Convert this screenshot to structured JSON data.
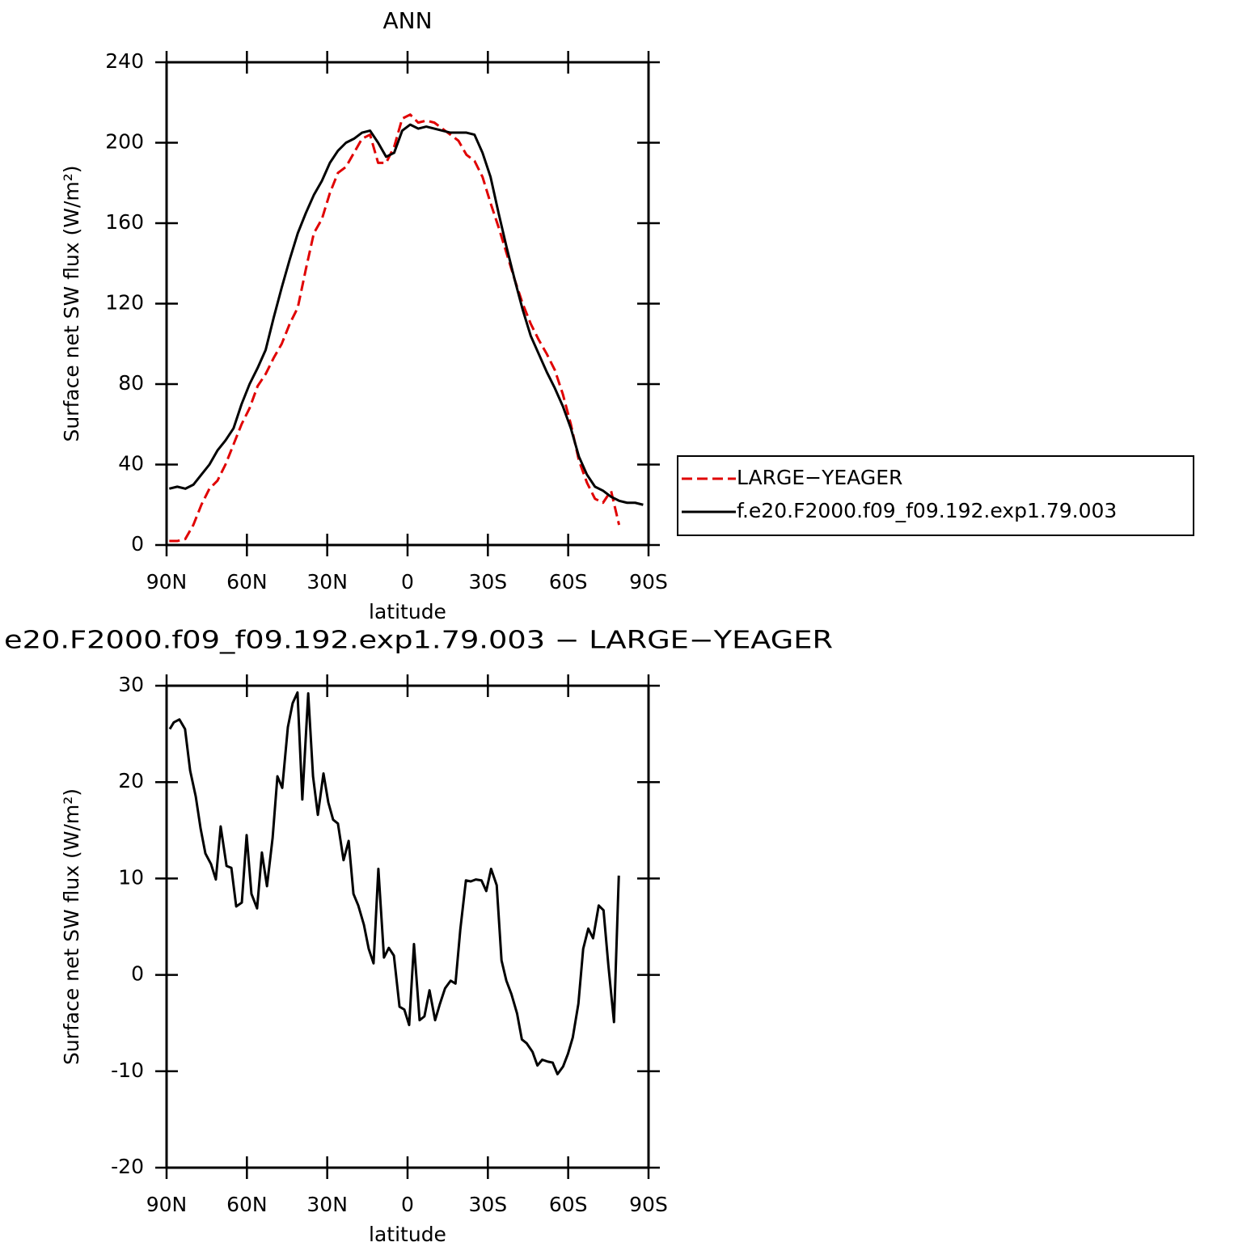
{
  "chart_data": [
    {
      "type": "line",
      "title": "ANN",
      "xlabel": "latitude",
      "ylabel": "Surface net SW flux (W/m²)",
      "x": [
        89,
        86,
        83,
        80,
        77,
        74,
        71,
        68,
        65,
        62,
        59,
        56,
        53,
        50,
        47,
        44,
        41,
        38,
        35,
        32,
        29,
        26,
        23,
        20,
        17,
        14,
        11,
        8,
        5,
        2,
        -1,
        -4,
        -7,
        -10,
        -13,
        -16,
        -19,
        -22,
        -25,
        -28,
        -31,
        -34,
        -37,
        -40,
        -43,
        -46,
        -49,
        -52,
        -55,
        -58,
        -61,
        -64,
        -67,
        -70,
        -73,
        -76,
        -79,
        -82,
        -85,
        -88
      ],
      "series": [
        {
          "name": "LARGE−YEAGER",
          "color": "#e00000",
          "linestyle": "dashed",
          "values": [
            2,
            2,
            3,
            10,
            20,
            28,
            32,
            40,
            50,
            60,
            68,
            79,
            85,
            93,
            100,
            110,
            118,
            137,
            155,
            162,
            175,
            185,
            188,
            195,
            202,
            204,
            190,
            190,
            198,
            212,
            214,
            210,
            211,
            210,
            207,
            204,
            201,
            194,
            191,
            183,
            170,
            158,
            145,
            132,
            120,
            110,
            102,
            95,
            87,
            75,
            60,
            42,
            31,
            23,
            21,
            27,
            10,
            null,
            null,
            null
          ]
        },
        {
          "name": "f.e20.F2000.f09_f09.192.exp1.79.003",
          "color": "#000000",
          "linestyle": "solid",
          "values": [
            28,
            29,
            28,
            30,
            35,
            40,
            47,
            52,
            58,
            70,
            80,
            88,
            97,
            113,
            128,
            142,
            155,
            165,
            174,
            181,
            190,
            196,
            200,
            202,
            205,
            206,
            200,
            193,
            195,
            206,
            209,
            207,
            208,
            207,
            206,
            205,
            205,
            205,
            204,
            195,
            183,
            165,
            148,
            132,
            117,
            104,
            95,
            86,
            78,
            69,
            58,
            44,
            35,
            29,
            27,
            24,
            22,
            21,
            21,
            20
          ]
        }
      ],
      "xlim": [
        90,
        -90
      ],
      "xticks": [
        {
          "value": 90,
          "label": "90N"
        },
        {
          "value": 60,
          "label": "60N"
        },
        {
          "value": 30,
          "label": "30N"
        },
        0,
        {
          "value": -30,
          "label": "30S"
        },
        {
          "value": -60,
          "label": "60S"
        },
        {
          "value": -90,
          "label": "90S"
        }
      ],
      "ylim": [
        0,
        240
      ],
      "yticks": [
        0,
        40,
        80,
        120,
        160,
        200,
        240
      ],
      "legend": "right"
    },
    {
      "type": "line",
      "title": "e20.F2000.f09_f09.192.exp1.79.003 − LARGE−YEAGER",
      "xlabel": "latitude",
      "ylabel": "Surface net SW flux (W/m²)",
      "x": [
        88.8,
        87.3,
        85.2,
        83.1,
        81.2,
        79.1,
        77.3,
        75.5,
        73.4,
        71.6,
        69.8,
        67.6,
        65.8,
        64.0,
        61.9,
        60.1,
        58.3,
        56.2,
        54.4,
        52.5,
        50.4,
        48.6,
        46.8,
        44.7,
        42.9,
        41.1,
        39.3,
        37.1,
        35.3,
        33.5,
        31.4,
        29.6,
        27.8,
        26.0,
        23.9,
        22.0,
        20.2,
        18.4,
        16.3,
        14.5,
        12.7,
        10.9,
        8.8,
        7.0,
        5.1,
        3.0,
        1.2,
        -0.6,
        -2.4,
        -4.5,
        -6.3,
        -8.2,
        -10.3,
        -12.1,
        -14.0,
        -16.1,
        -17.9,
        -19.7,
        -21.8,
        -23.6,
        -25.5,
        -27.6,
        -29.4,
        -31.2,
        -33.3,
        -35.1,
        -36.9,
        -38.8,
        -40.9,
        -42.7,
        -44.5,
        -46.7,
        -48.5,
        -50.3,
        -52.4,
        -54.2,
        -56.0,
        -58.1,
        -59.9,
        -61.7,
        -63.8,
        -65.6,
        -67.5,
        -69.3,
        -71.4,
        -73.2,
        -75.0,
        -77.1,
        -78.9
      ],
      "series": [
        {
          "color": "#000000",
          "linestyle": "solid",
          "values": [
            25.5,
            26.2,
            26.5,
            25.5,
            21.2,
            18.5,
            15.2,
            12.6,
            11.5,
            9.9,
            15.4,
            11.3,
            11.1,
            7.1,
            7.5,
            14.5,
            8.4,
            6.9,
            12.7,
            9.2,
            14.2,
            20.6,
            19.4,
            25.7,
            28.2,
            29.3,
            18.2,
            29.2,
            20.6,
            16.6,
            20.9,
            17.9,
            16.1,
            15.7,
            11.9,
            13.9,
            8.4,
            7.2,
            5.2,
            2.7,
            1.2,
            11.0,
            1.8,
            2.8,
            2.0,
            -3.3,
            -3.6,
            -5.2,
            3.2,
            -4.7,
            -4.3,
            -1.6,
            -4.7,
            -3.0,
            -1.4,
            -0.6,
            -0.9,
            4.7,
            9.8,
            9.7,
            9.9,
            9.8,
            8.7,
            11.0,
            9.3,
            1.5,
            -0.6,
            -2.0,
            -4.0,
            -6.7,
            -7.1,
            -8.0,
            -9.4,
            -8.8,
            -9.0,
            -9.1,
            -10.3,
            -9.5,
            -8.2,
            -6.5,
            -3.0,
            2.7,
            4.8,
            3.8,
            7.2,
            6.7,
            1.0,
            -4.9,
            10.3
          ]
        }
      ],
      "xlim": [
        90,
        -90
      ],
      "xticks": [
        {
          "value": 90,
          "label": "90N"
        },
        {
          "value": 60,
          "label": "60N"
        },
        {
          "value": 30,
          "label": "30N"
        },
        0,
        {
          "value": -30,
          "label": "30S"
        },
        {
          "value": -60,
          "label": "60S"
        },
        {
          "value": -90,
          "label": "90S"
        }
      ],
      "ylim": [
        -20,
        30
      ],
      "yticks": [
        -20,
        -10,
        0,
        10,
        20,
        30
      ]
    }
  ]
}
